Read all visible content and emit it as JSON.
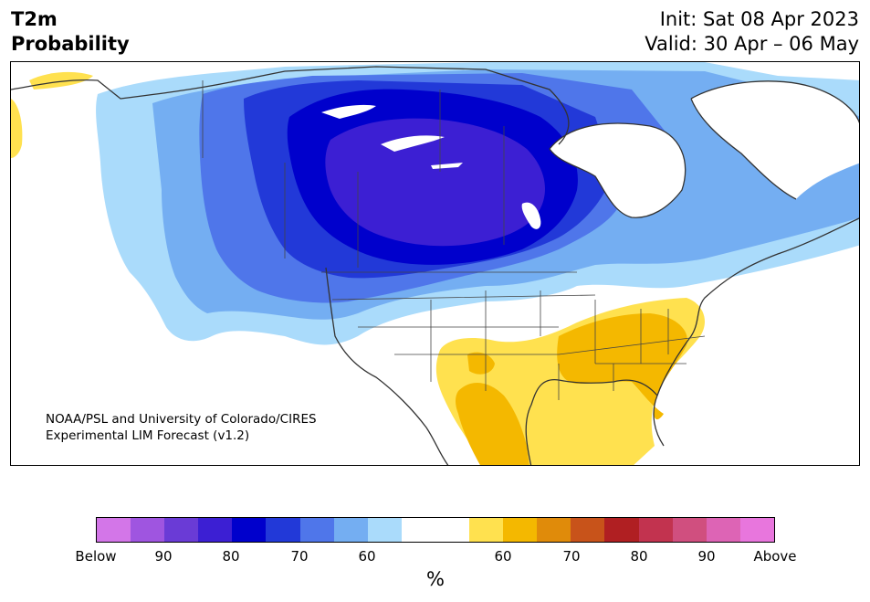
{
  "title": {
    "line1": "T2m",
    "line2": "Probability"
  },
  "info": {
    "init": "Init: Sat 08 Apr 2023",
    "valid": "Valid: 30 Apr – 06 May"
  },
  "credit": {
    "line1": "NOAA/PSL and University of Colorado/CIRES",
    "line2": "Experimental LIM Forecast (v1.2)"
  },
  "colorbar": {
    "colors": [
      "#d376e8",
      "#9f55e0",
      "#6a3bd6",
      "#3c1fd3",
      "#0000cc",
      "#2239d8",
      "#4f76ea",
      "#74aef2",
      "#aadbfb",
      "#ffffff",
      "#ffffff",
      "#ffe14f",
      "#f4b800",
      "#e08b0a",
      "#c8531a",
      "#b01f22",
      "#c2334f",
      "#d04f7f",
      "#dd64b5",
      "#e876dd"
    ],
    "tick_labels": [
      "Below",
      "90",
      "80",
      "70",
      "60",
      "60",
      "70",
      "80",
      "90",
      "Above"
    ],
    "unit": "%"
  },
  "map": {
    "region": "North America",
    "below_colors": {
      "p90": "#3c1fd3",
      "p80": "#0000cc",
      "p70": "#2239d8",
      "p60": "#4f76ea",
      "p50": "#74aef2",
      "p40": "#aadbfb"
    },
    "above_colors": {
      "p40": "#ffe14f",
      "p50": "#f4b800"
    }
  }
}
